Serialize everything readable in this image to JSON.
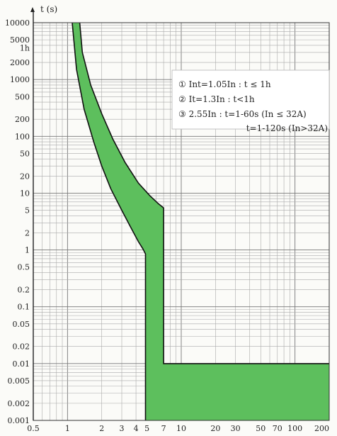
{
  "chart_data": {
    "type": "area",
    "title": "",
    "xlabel": "",
    "ylabel": "t (s)",
    "x_scale": "log",
    "y_scale": "log",
    "xlim": [
      0.5,
      200
    ],
    "ylim": [
      0.001,
      10000
    ],
    "x_ticks": [
      {
        "value": 0.5,
        "label": "0.5"
      },
      {
        "value": 1,
        "label": "1"
      },
      {
        "value": 2,
        "label": "2"
      },
      {
        "value": 3,
        "label": "3"
      },
      {
        "value": 4,
        "label": "4"
      },
      {
        "value": 5,
        "label": "5"
      },
      {
        "value": 7,
        "label": "7"
      },
      {
        "value": 10,
        "label": "10"
      },
      {
        "value": 20,
        "label": "20"
      },
      {
        "value": 30,
        "label": "30"
      },
      {
        "value": 50,
        "label": "50"
      },
      {
        "value": 70,
        "label": "70"
      },
      {
        "value": 100,
        "label": "100"
      },
      {
        "value": 200,
        "label": "200"
      }
    ],
    "y_ticks": [
      {
        "value": 10000,
        "label": "10000"
      },
      {
        "value": 5000,
        "label": "5000"
      },
      {
        "value": 3600,
        "label": "1h"
      },
      {
        "value": 2000,
        "label": "2000"
      },
      {
        "value": 1000,
        "label": "1000"
      },
      {
        "value": 500,
        "label": "500"
      },
      {
        "value": 200,
        "label": "200"
      },
      {
        "value": 100,
        "label": "100"
      },
      {
        "value": 50,
        "label": "50"
      },
      {
        "value": 20,
        "label": "20"
      },
      {
        "value": 10,
        "label": "10"
      },
      {
        "value": 5,
        "label": "5"
      },
      {
        "value": 2,
        "label": "2"
      },
      {
        "value": 1,
        "label": "1"
      },
      {
        "value": 0.5,
        "label": "0.5"
      },
      {
        "value": 0.2,
        "label": "0.2"
      },
      {
        "value": 0.1,
        "label": "0.1"
      },
      {
        "value": 0.05,
        "label": "0.05"
      },
      {
        "value": 0.02,
        "label": "0.02"
      },
      {
        "value": 0.01,
        "label": "0.01"
      },
      {
        "value": 0.005,
        "label": "0.005"
      },
      {
        "value": 0.002,
        "label": "0.002"
      },
      {
        "value": 0.001,
        "label": "0.001"
      }
    ],
    "grid": true,
    "legend_position": "top-right",
    "band_color": "#5dbf5d",
    "band_stroke": "#111111",
    "series": [
      {
        "name": "",
        "x": [
          1.1,
          1.2,
          1.4,
          1.7,
          2.0,
          2.4,
          3.0,
          3.6,
          4.2,
          4.6,
          4.85,
          4.85
        ],
        "y": [
          10000,
          1500,
          300,
          80,
          30,
          12,
          5,
          2.5,
          1.4,
          1.05,
          0.85,
          0.001
        ]
      },
      {
        "name": "",
        "x": [
          1.28,
          1.35,
          1.6,
          2.0,
          2.5,
          3.2,
          4.2,
          5.3,
          6.3,
          7.0,
          7.0,
          200
        ],
        "y": [
          10000,
          3000,
          800,
          250,
          90,
          35,
          15,
          9,
          6.5,
          5.5,
          0.01,
          0.01
        ]
      }
    ],
    "annotations": [
      "① Int=1.05In : t ≤ 1h",
      "② It=1.3In : t<1h",
      "③ 2.55In : t=1-60s (In ≤ 32A)",
      "t=1-120s (In>32A)"
    ]
  }
}
